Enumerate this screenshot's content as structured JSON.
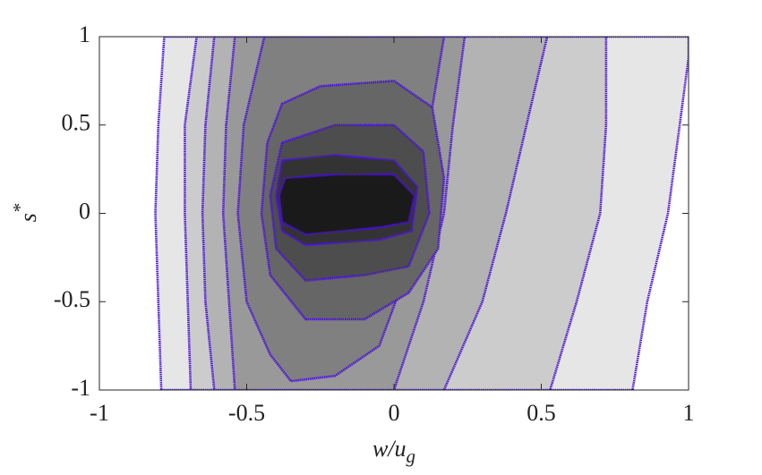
{
  "chart_data": {
    "type": "contour",
    "x_label": {
      "main": "w/u",
      "sub": "g"
    },
    "y_label": {
      "main": "s",
      "sup": "*"
    },
    "xlim": [
      -1,
      1
    ],
    "ylim": [
      -1,
      1
    ],
    "xticks": [
      -1,
      -0.5,
      0,
      0.5,
      1
    ],
    "yticks": [
      -1,
      -0.5,
      0,
      0.5,
      1
    ],
    "line_color": "#4a12d6",
    "series": [
      {
        "color": "#e6e6e6",
        "x": [
          -0.78,
          -0.8,
          -0.81,
          -0.8,
          -0.79,
          0.81,
          0.86,
          0.93,
          0.97,
          1,
          1
        ],
        "y": [
          1,
          0.5,
          0,
          -0.5,
          -1,
          -1,
          -0.5,
          0,
          0.5,
          0.88,
          1
        ]
      },
      {
        "color": "#cccccc",
        "x": [
          -0.67,
          -0.71,
          -0.71,
          -0.7,
          -0.69,
          0.53,
          0.62,
          0.7,
          0.72,
          0.72
        ],
        "y": [
          1,
          0.5,
          0,
          -0.5,
          -1,
          -1,
          -0.5,
          0,
          0.5,
          1
        ]
      },
      {
        "color": "#b3b3b3",
        "x": [
          -0.61,
          -0.64,
          -0.65,
          -0.64,
          -0.61,
          0.17,
          0.3,
          0.38,
          0.45,
          0.52
        ],
        "y": [
          1,
          0.5,
          0,
          -0.5,
          -1,
          -1,
          -0.5,
          0,
          0.5,
          1
        ]
      },
      {
        "color": "#999999",
        "x": [
          -0.54,
          -0.57,
          -0.58,
          -0.56,
          -0.54,
          0.0,
          0.1,
          0.17,
          0.2,
          0.24
        ],
        "y": [
          1,
          0.5,
          0,
          -0.5,
          -1,
          -1,
          -0.5,
          0,
          0.5,
          1
        ]
      },
      {
        "color": "#808080",
        "x": [
          -0.44,
          -0.51,
          -0.53,
          -0.5,
          -0.42,
          -0.35,
          -0.2,
          -0.05,
          0.05,
          0.1,
          0.13,
          0.17
        ],
        "y": [
          1,
          0.5,
          0,
          -0.5,
          -0.8,
          -0.95,
          -0.92,
          -0.75,
          -0.3,
          0.2,
          0.6,
          1
        ]
      },
      {
        "color": "#666666",
        "x": [
          -0.38,
          -0.25,
          0.0,
          0.13,
          0.17,
          0.15,
          0.05,
          -0.1,
          -0.3,
          -0.42,
          -0.45,
          -0.43
        ],
        "y": [
          0.62,
          0.72,
          0.75,
          0.6,
          0.2,
          -0.2,
          -0.45,
          -0.6,
          -0.6,
          -0.35,
          0,
          0.4
        ]
      },
      {
        "color": "#4d4d4d",
        "x": [
          -0.38,
          -0.2,
          0.0,
          0.1,
          0.12,
          0.05,
          -0.1,
          -0.3,
          -0.4,
          -0.42
        ],
        "y": [
          0.4,
          0.5,
          0.5,
          0.35,
          0,
          -0.3,
          -0.35,
          -0.38,
          -0.2,
          0.1
        ]
      },
      {
        "color": "#333333",
        "x": [
          -0.38,
          -0.2,
          0.0,
          0.08,
          0.06,
          -0.05,
          -0.3,
          -0.38,
          -0.4
        ],
        "y": [
          0.3,
          0.33,
          0.3,
          0.15,
          -0.1,
          -0.15,
          -0.18,
          -0.1,
          0.1
        ]
      },
      {
        "color": "#1a1a1a",
        "x": [
          -0.37,
          -0.2,
          0.0,
          0.07,
          0.05,
          -0.05,
          -0.3,
          -0.38,
          -0.39
        ],
        "y": [
          0.2,
          0.22,
          0.22,
          0.1,
          -0.05,
          -0.08,
          -0.12,
          -0.05,
          0.1
        ]
      }
    ]
  }
}
